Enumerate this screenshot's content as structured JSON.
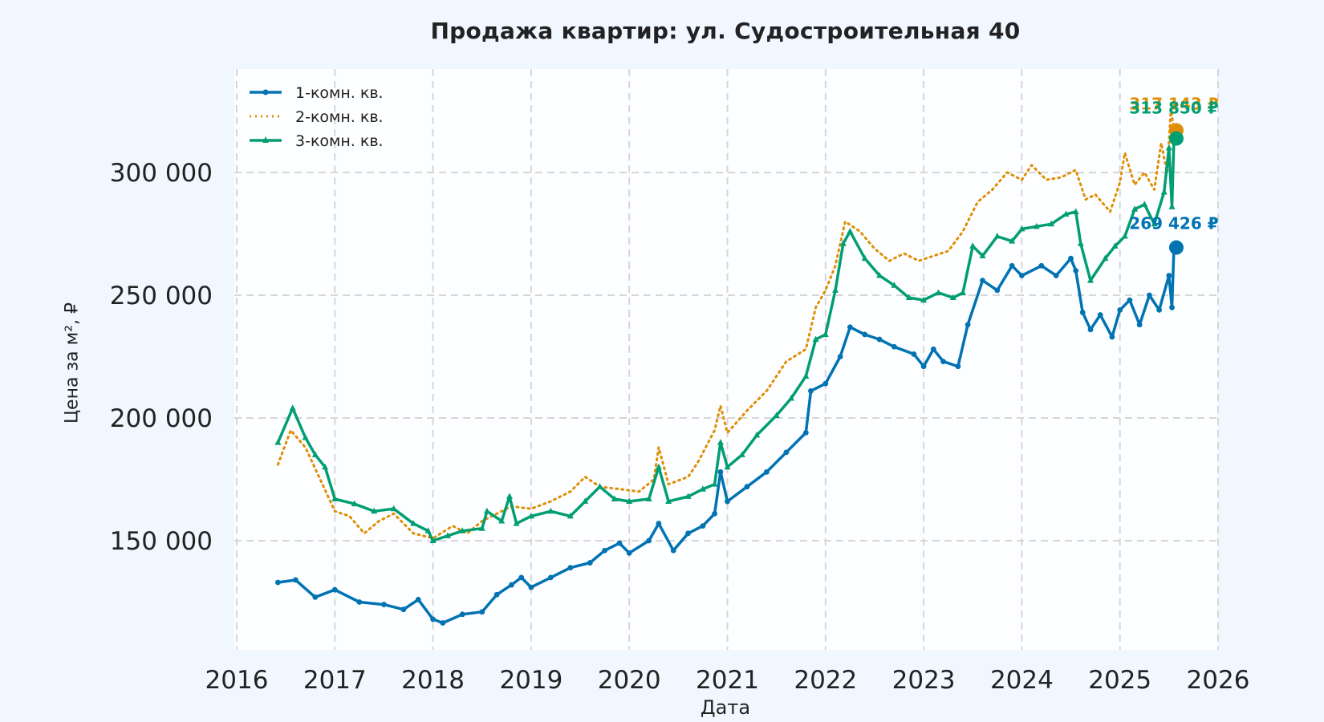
{
  "chart_data": {
    "type": "line",
    "title": "Продажа квартир: ул. Судостроительная 40",
    "xlabel": "Дата",
    "ylabel": "Цена за м², ₽",
    "xlim": [
      2016,
      2026
    ],
    "ylim": [
      105000,
      340000
    ],
    "x_ticks": [
      "2016",
      "2017",
      "2018",
      "2019",
      "2020",
      "2021",
      "2022",
      "2023",
      "2024",
      "2025",
      "2026"
    ],
    "y_ticks": [
      "150 000",
      "200 000",
      "250 000",
      "300 000"
    ],
    "y_tick_values": [
      150000,
      200000,
      250000,
      300000
    ],
    "grid": true,
    "legend_position": "top-left",
    "series": [
      {
        "name": "1-комн. кв.",
        "color": "#0173b2",
        "style": "solid-dot-marker",
        "end_label": "269 426 ₽",
        "end_value": 269426,
        "points": [
          [
            2016.42,
            133000
          ],
          [
            2016.6,
            134000
          ],
          [
            2016.8,
            127000
          ],
          [
            2017.0,
            130000
          ],
          [
            2017.25,
            125000
          ],
          [
            2017.5,
            124000
          ],
          [
            2017.7,
            122000
          ],
          [
            2017.85,
            126000
          ],
          [
            2018.0,
            118000
          ],
          [
            2018.1,
            116500
          ],
          [
            2018.3,
            120000
          ],
          [
            2018.5,
            121000
          ],
          [
            2018.65,
            128000
          ],
          [
            2018.8,
            132000
          ],
          [
            2018.9,
            135000
          ],
          [
            2019.0,
            131000
          ],
          [
            2019.2,
            135000
          ],
          [
            2019.4,
            139000
          ],
          [
            2019.6,
            141000
          ],
          [
            2019.75,
            146000
          ],
          [
            2019.9,
            149000
          ],
          [
            2020.0,
            145000
          ],
          [
            2020.2,
            150000
          ],
          [
            2020.3,
            157000
          ],
          [
            2020.45,
            146000
          ],
          [
            2020.6,
            153000
          ],
          [
            2020.75,
            156000
          ],
          [
            2020.87,
            161000
          ],
          [
            2020.93,
            178000
          ],
          [
            2021.0,
            166000
          ],
          [
            2021.2,
            172000
          ],
          [
            2021.4,
            178000
          ],
          [
            2021.6,
            186000
          ],
          [
            2021.8,
            194000
          ],
          [
            2021.85,
            211000
          ],
          [
            2022.0,
            214000
          ],
          [
            2022.15,
            225000
          ],
          [
            2022.25,
            237000
          ],
          [
            2022.4,
            234000
          ],
          [
            2022.55,
            232000
          ],
          [
            2022.7,
            229000
          ],
          [
            2022.9,
            226000
          ],
          [
            2023.0,
            221000
          ],
          [
            2023.1,
            228000
          ],
          [
            2023.2,
            223000
          ],
          [
            2023.35,
            221000
          ],
          [
            2023.45,
            238000
          ],
          [
            2023.6,
            256000
          ],
          [
            2023.75,
            252000
          ],
          [
            2023.9,
            262000
          ],
          [
            2024.0,
            258000
          ],
          [
            2024.2,
            262000
          ],
          [
            2024.35,
            258000
          ],
          [
            2024.5,
            265000
          ],
          [
            2024.55,
            260000
          ],
          [
            2024.62,
            243000
          ],
          [
            2024.7,
            236000
          ],
          [
            2024.8,
            242000
          ],
          [
            2024.92,
            233000
          ],
          [
            2025.0,
            244000
          ],
          [
            2025.1,
            248000
          ],
          [
            2025.2,
            238000
          ],
          [
            2025.3,
            250000
          ],
          [
            2025.4,
            244000
          ],
          [
            2025.5,
            258000
          ],
          [
            2025.53,
            245000
          ],
          [
            2025.55,
            269426
          ]
        ]
      },
      {
        "name": "2-комн. кв.",
        "color": "#de8f05",
        "style": "dotted",
        "end_label": "317 143 ₽",
        "end_value": 317143,
        "points": [
          [
            2016.42,
            181000
          ],
          [
            2016.55,
            195000
          ],
          [
            2016.7,
            188000
          ],
          [
            2016.85,
            175000
          ],
          [
            2017.0,
            162000
          ],
          [
            2017.15,
            160000
          ],
          [
            2017.3,
            153000
          ],
          [
            2017.45,
            158000
          ],
          [
            2017.6,
            161000
          ],
          [
            2017.8,
            153000
          ],
          [
            2018.0,
            151000
          ],
          [
            2018.2,
            156000
          ],
          [
            2018.35,
            153000
          ],
          [
            2018.5,
            158000
          ],
          [
            2018.7,
            162000
          ],
          [
            2018.8,
            164000
          ],
          [
            2019.0,
            163000
          ],
          [
            2019.2,
            166000
          ],
          [
            2019.4,
            170000
          ],
          [
            2019.55,
            176000
          ],
          [
            2019.7,
            172000
          ],
          [
            2019.9,
            171000
          ],
          [
            2020.1,
            170000
          ],
          [
            2020.25,
            175000
          ],
          [
            2020.3,
            188000
          ],
          [
            2020.4,
            173000
          ],
          [
            2020.6,
            176000
          ],
          [
            2020.7,
            182000
          ],
          [
            2020.87,
            195000
          ],
          [
            2020.93,
            205000
          ],
          [
            2021.0,
            194000
          ],
          [
            2021.2,
            203000
          ],
          [
            2021.4,
            211000
          ],
          [
            2021.6,
            223000
          ],
          [
            2021.8,
            228000
          ],
          [
            2021.9,
            245000
          ],
          [
            2022.0,
            252000
          ],
          [
            2022.1,
            262000
          ],
          [
            2022.2,
            280000
          ],
          [
            2022.35,
            276000
          ],
          [
            2022.5,
            269000
          ],
          [
            2022.65,
            264000
          ],
          [
            2022.8,
            267000
          ],
          [
            2022.95,
            264000
          ],
          [
            2023.1,
            266000
          ],
          [
            2023.25,
            268000
          ],
          [
            2023.4,
            276000
          ],
          [
            2023.55,
            288000
          ],
          [
            2023.7,
            293000
          ],
          [
            2023.85,
            300000
          ],
          [
            2024.0,
            297000
          ],
          [
            2024.1,
            303000
          ],
          [
            2024.25,
            297000
          ],
          [
            2024.4,
            298000
          ],
          [
            2024.55,
            301000
          ],
          [
            2024.65,
            289000
          ],
          [
            2024.75,
            291000
          ],
          [
            2024.9,
            284000
          ],
          [
            2025.0,
            296000
          ],
          [
            2025.05,
            308000
          ],
          [
            2025.15,
            295000
          ],
          [
            2025.25,
            300000
          ],
          [
            2025.35,
            293000
          ],
          [
            2025.42,
            312000
          ],
          [
            2025.48,
            300000
          ],
          [
            2025.52,
            326000
          ],
          [
            2025.55,
            317143
          ]
        ]
      },
      {
        "name": "3-комн. кв.",
        "color": "#029e73",
        "style": "solid-triangle-marker",
        "end_label": "313 850 ₽",
        "end_value": 313850,
        "points": [
          [
            2016.42,
            190000
          ],
          [
            2016.57,
            204000
          ],
          [
            2016.7,
            192000
          ],
          [
            2016.8,
            185000
          ],
          [
            2016.9,
            180000
          ],
          [
            2017.0,
            167000
          ],
          [
            2017.2,
            165000
          ],
          [
            2017.4,
            162000
          ],
          [
            2017.6,
            163000
          ],
          [
            2017.8,
            157000
          ],
          [
            2017.95,
            154000
          ],
          [
            2018.0,
            150000
          ],
          [
            2018.15,
            152000
          ],
          [
            2018.3,
            154000
          ],
          [
            2018.5,
            155000
          ],
          [
            2018.55,
            162000
          ],
          [
            2018.7,
            158000
          ],
          [
            2018.78,
            168000
          ],
          [
            2018.85,
            157000
          ],
          [
            2019.0,
            160000
          ],
          [
            2019.2,
            162000
          ],
          [
            2019.4,
            160000
          ],
          [
            2019.55,
            166000
          ],
          [
            2019.7,
            172000
          ],
          [
            2019.85,
            167000
          ],
          [
            2020.0,
            166000
          ],
          [
            2020.2,
            167000
          ],
          [
            2020.3,
            180000
          ],
          [
            2020.4,
            166000
          ],
          [
            2020.6,
            168000
          ],
          [
            2020.75,
            171000
          ],
          [
            2020.87,
            173000
          ],
          [
            2020.93,
            190000
          ],
          [
            2021.0,
            180000
          ],
          [
            2021.15,
            185000
          ],
          [
            2021.3,
            193000
          ],
          [
            2021.5,
            201000
          ],
          [
            2021.65,
            208000
          ],
          [
            2021.8,
            217000
          ],
          [
            2021.9,
            232000
          ],
          [
            2022.0,
            234000
          ],
          [
            2022.1,
            252000
          ],
          [
            2022.18,
            271000
          ],
          [
            2022.25,
            276000
          ],
          [
            2022.4,
            265000
          ],
          [
            2022.55,
            258000
          ],
          [
            2022.7,
            254000
          ],
          [
            2022.85,
            249000
          ],
          [
            2023.0,
            248000
          ],
          [
            2023.15,
            251000
          ],
          [
            2023.3,
            249000
          ],
          [
            2023.4,
            251000
          ],
          [
            2023.5,
            270000
          ],
          [
            2023.6,
            266000
          ],
          [
            2023.75,
            274000
          ],
          [
            2023.9,
            272000
          ],
          [
            2024.0,
            277000
          ],
          [
            2024.15,
            278000
          ],
          [
            2024.3,
            279000
          ],
          [
            2024.45,
            283000
          ],
          [
            2024.55,
            284000
          ],
          [
            2024.6,
            271000
          ],
          [
            2024.7,
            256000
          ],
          [
            2024.85,
            265000
          ],
          [
            2024.95,
            270000
          ],
          [
            2025.05,
            274000
          ],
          [
            2025.15,
            285000
          ],
          [
            2025.25,
            287000
          ],
          [
            2025.35,
            279000
          ],
          [
            2025.45,
            292000
          ],
          [
            2025.5,
            310000
          ],
          [
            2025.53,
            286000
          ],
          [
            2025.55,
            313850
          ]
        ]
      }
    ]
  }
}
